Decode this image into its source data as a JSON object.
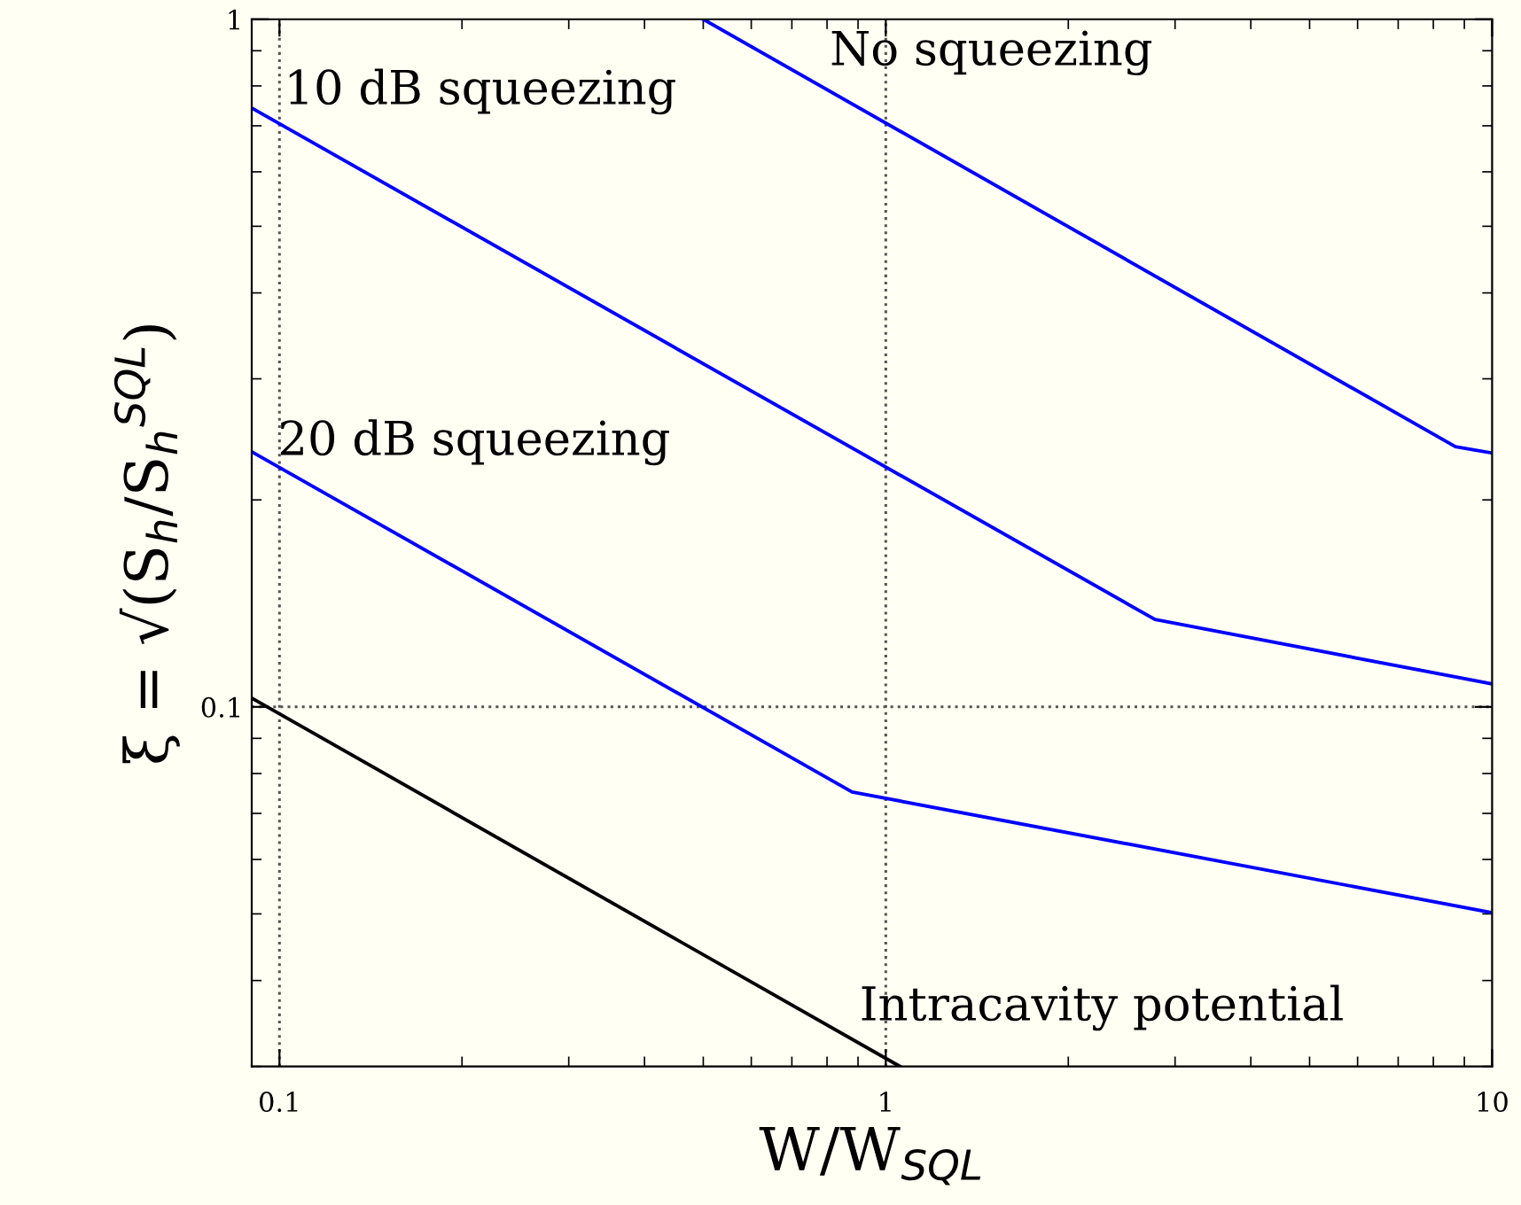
{
  "chart_data": {
    "type": "line",
    "xlabel": "W/W$_{SQL}$",
    "ylabel": "ξ = √(S$_{h}$/S$_{h}$$^{SQL}$)",
    "log": "xy",
    "xlim": [
      0.09,
      10
    ],
    "ylim": [
      0.03,
      1
    ],
    "xticks": [
      0.1,
      1,
      10
    ],
    "yticks": [
      0.1,
      1
    ],
    "grid": false,
    "legend": false,
    "marker": "none",
    "line_style": "solid",
    "series": [
      {
        "color": "#0000ff",
        "x": [
          0.5,
          8.7,
          10
        ],
        "values": [
          1,
          0.239,
          0.234
        ]
      },
      {
        "color": "#0000ff",
        "x": [
          0.09,
          2.78,
          10
        ],
        "values": [
          0.743,
          0.134,
          0.108
        ]
      },
      {
        "color": "#0000ff",
        "x": [
          0.09,
          0.88,
          10
        ],
        "values": [
          0.235,
          0.0752,
          0.0502
        ]
      },
      {
        "color": "#000000",
        "x": [
          0.09,
          1.055
        ],
        "values": [
          0.103,
          0.03
        ]
      }
    ],
    "ref_lines": [
      {
        "axis": "x",
        "value": 0.1,
        "color": "#555555",
        "line_style": "dotted"
      },
      {
        "axis": "x",
        "value": 1,
        "color": "#555555",
        "line_style": "dotted"
      },
      {
        "axis": "y",
        "value": 0.1,
        "color": "#555555",
        "line_style": "dotted"
      }
    ],
    "annotations": [
      "No squeezing",
      "10 dB squeezing",
      "20 dB squeezing",
      "Intracavity potential"
    ]
  }
}
